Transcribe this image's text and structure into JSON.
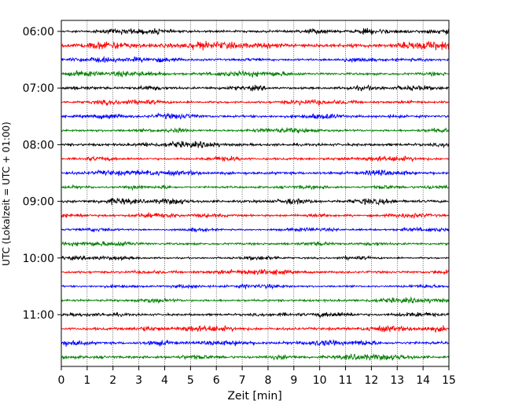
{
  "chart_data": {
    "type": "line",
    "title": "",
    "xlabel": "Zeit  [min]",
    "ylabel": "UTC (Lokalzeit = UTC + 01:00)",
    "xlim": [
      0,
      15
    ],
    "x_ticks": [
      "0",
      "1",
      "2",
      "3",
      "4",
      "5",
      "6",
      "7",
      "8",
      "9",
      "10",
      "11",
      "12",
      "13",
      "14",
      "15"
    ],
    "y_ticks": [
      "06:00",
      "07:00",
      "08:00",
      "09:00",
      "10:00",
      "11:00"
    ],
    "grid": "vertical dotted lines at each minute",
    "row_interval_minutes": 15,
    "first_row_time": "06:00",
    "row_colors": [
      "#000000",
      "#ff0000",
      "#0000ff",
      "#008000"
    ],
    "series": [
      {
        "time": "06:00",
        "color": "#000000",
        "amplitude": 0.55
      },
      {
        "time": "06:15",
        "color": "#ff0000",
        "amplitude": 0.85
      },
      {
        "time": "06:30",
        "color": "#0000ff",
        "amplitude": 0.5
      },
      {
        "time": "06:45",
        "color": "#008000",
        "amplitude": 0.55
      },
      {
        "time": "07:00",
        "color": "#000000",
        "amplitude": 0.5
      },
      {
        "time": "07:15",
        "color": "#ff0000",
        "amplitude": 0.5
      },
      {
        "time": "07:30",
        "color": "#0000ff",
        "amplitude": 0.55
      },
      {
        "time": "07:45",
        "color": "#008000",
        "amplitude": 0.5
      },
      {
        "time": "08:00",
        "color": "#000000",
        "amplitude": 0.6
      },
      {
        "time": "08:15",
        "color": "#ff0000",
        "amplitude": 0.5
      },
      {
        "time": "08:30",
        "color": "#0000ff",
        "amplitude": 0.65
      },
      {
        "time": "08:45",
        "color": "#008000",
        "amplitude": 0.45
      },
      {
        "time": "09:00",
        "color": "#000000",
        "amplitude": 0.6
      },
      {
        "time": "09:15",
        "color": "#ff0000",
        "amplitude": 0.5
      },
      {
        "time": "09:30",
        "color": "#0000ff",
        "amplitude": 0.4
      },
      {
        "time": "09:45",
        "color": "#008000",
        "amplitude": 0.5
      },
      {
        "time": "10:00",
        "color": "#000000",
        "amplitude": 0.4
      },
      {
        "time": "10:15",
        "color": "#ff0000",
        "amplitude": 0.55
      },
      {
        "time": "10:30",
        "color": "#0000ff",
        "amplitude": 0.4
      },
      {
        "time": "10:45",
        "color": "#008000",
        "amplitude": 0.5
      },
      {
        "time": "11:00",
        "color": "#000000",
        "amplitude": 0.5
      },
      {
        "time": "11:15",
        "color": "#ff0000",
        "amplitude": 0.6
      },
      {
        "time": "11:30",
        "color": "#0000ff",
        "amplitude": 0.6
      },
      {
        "time": "11:45",
        "color": "#008000",
        "amplitude": 0.6
      }
    ]
  }
}
